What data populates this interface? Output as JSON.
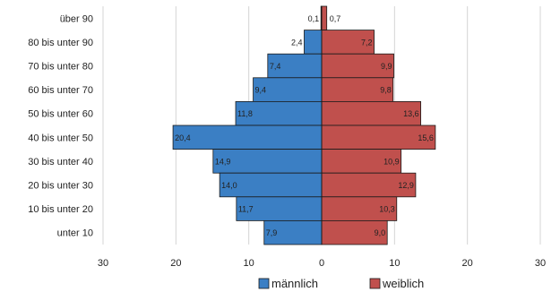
{
  "chart_data": {
    "type": "bar",
    "orientation": "horizontal",
    "layout": "population-pyramid",
    "categories": [
      "über 90",
      "80 bis unter 90",
      "70 bis unter 80",
      "60 bis unter 70",
      "50 bis unter 60",
      "40 bis unter 50",
      "30 bis unter 40",
      "20 bis unter 30",
      "10 bis unter 20",
      "unter 10"
    ],
    "series": [
      {
        "name": "männlich",
        "side": "left",
        "color": "#3b7fc4",
        "values": [
          0.1,
          2.4,
          7.4,
          9.4,
          11.8,
          20.4,
          14.9,
          14.0,
          11.7,
          7.9
        ],
        "labels": [
          "0,1",
          "2,4",
          "7,4",
          "9,4",
          "11,8",
          "20,4",
          "14,9",
          "14,0",
          "11,7",
          "7,9"
        ]
      },
      {
        "name": "weiblich",
        "side": "right",
        "color": "#c0504d",
        "values": [
          0.7,
          7.2,
          9.9,
          9.8,
          13.6,
          15.6,
          10.9,
          12.9,
          10.3,
          9.0
        ],
        "labels": [
          "0,7",
          "7,2",
          "9,9",
          "9,8",
          "13,6",
          "15,6",
          "10,9",
          "12,9",
          "10,3",
          "9,0"
        ]
      }
    ],
    "xlim": [
      -30,
      30
    ],
    "xticks": [
      -30,
      -20,
      -10,
      0,
      10,
      20,
      30
    ],
    "xtick_labels": [
      "30",
      "20",
      "10",
      "0",
      "10",
      "20",
      "30"
    ],
    "grid": "vertical",
    "legend": "bottom-center",
    "title": "",
    "xlabel": "",
    "ylabel": ""
  }
}
